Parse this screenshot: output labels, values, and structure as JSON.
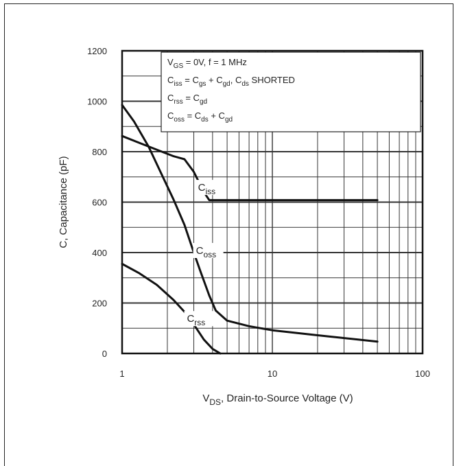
{
  "chart_data": {
    "type": "line",
    "title": "",
    "xlabel": {
      "main": "V",
      "sub": "DS",
      "rest": ", Drain-to-Source Voltage (V)"
    },
    "ylabel": "C, Capacitance (pF)",
    "xscale": "log",
    "xlim": [
      1,
      100
    ],
    "ylim": [
      0,
      1200
    ],
    "x_ticks": [
      {
        "value": 1,
        "label": "1"
      },
      {
        "value": 10,
        "label": "10"
      },
      {
        "value": 100,
        "label": "100"
      }
    ],
    "y_ticks": [
      {
        "value": 0,
        "label": "0"
      },
      {
        "value": 200,
        "label": "200"
      },
      {
        "value": 400,
        "label": "400"
      },
      {
        "value": 600,
        "label": "600"
      },
      {
        "value": 800,
        "label": "800"
      },
      {
        "value": 1000,
        "label": "1000"
      },
      {
        "value": 1200,
        "label": "1200"
      }
    ],
    "grid": true,
    "legend_placement": "top-right",
    "legend_lines": [
      [
        {
          "t": "V"
        },
        {
          "t": "GS",
          "sub": true
        },
        {
          "t": " = 0V,      f = 1 MHz"
        }
      ],
      [
        {
          "t": "C"
        },
        {
          "t": "iss",
          "sub": true
        },
        {
          "t": "  = C"
        },
        {
          "t": "gs",
          "sub": true
        },
        {
          "t": " + C"
        },
        {
          "t": "gd",
          "sub": true
        },
        {
          "t": ", C"
        },
        {
          "t": "ds",
          "sub": true
        },
        {
          "t": " SHORTED"
        }
      ],
      [
        {
          "t": "C"
        },
        {
          "t": "rss",
          "sub": true
        },
        {
          "t": "  = C"
        },
        {
          "t": "gd",
          "sub": true
        }
      ],
      [
        {
          "t": "C"
        },
        {
          "t": "oss",
          "sub": true
        },
        {
          "t": "  = C"
        },
        {
          "t": "ds",
          "sub": true
        },
        {
          "t": " + C"
        },
        {
          "t": "gd",
          "sub": true
        }
      ]
    ],
    "series": [
      {
        "label_main": "C",
        "label_sub": "iss",
        "label_at": {
          "x": 3.2,
          "y": 650
        },
        "points": [
          [
            1,
            862
          ],
          [
            1.3,
            835
          ],
          [
            1.7,
            808
          ],
          [
            2.2,
            782
          ],
          [
            2.6,
            770
          ],
          [
            3,
            720
          ],
          [
            3.5,
            640
          ],
          [
            3.8,
            608
          ],
          [
            5,
            608
          ],
          [
            10,
            608
          ],
          [
            20,
            608
          ],
          [
            50,
            608
          ]
        ]
      },
      {
        "label_main": "C",
        "label_sub": "oss",
        "label_at": {
          "x": 3.1,
          "y": 400
        },
        "points": [
          [
            1,
            985
          ],
          [
            1.2,
            920
          ],
          [
            1.5,
            820
          ],
          [
            1.8,
            720
          ],
          [
            2.2,
            610
          ],
          [
            2.6,
            510
          ],
          [
            3,
            400
          ],
          [
            3.3,
            330
          ],
          [
            3.8,
            230
          ],
          [
            4.2,
            170
          ],
          [
            5,
            130
          ],
          [
            7,
            108
          ],
          [
            10,
            92
          ],
          [
            20,
            72
          ],
          [
            50,
            47
          ]
        ]
      },
      {
        "label_main": "C",
        "label_sub": "rss",
        "label_at": {
          "x": 2.7,
          "y": 130
        },
        "points": [
          [
            1,
            355
          ],
          [
            1.3,
            318
          ],
          [
            1.7,
            272
          ],
          [
            2.2,
            212
          ],
          [
            2.6,
            165
          ],
          [
            3,
            115
          ],
          [
            3.5,
            55
          ],
          [
            4,
            18
          ],
          [
            4.5,
            0
          ]
        ]
      }
    ]
  }
}
